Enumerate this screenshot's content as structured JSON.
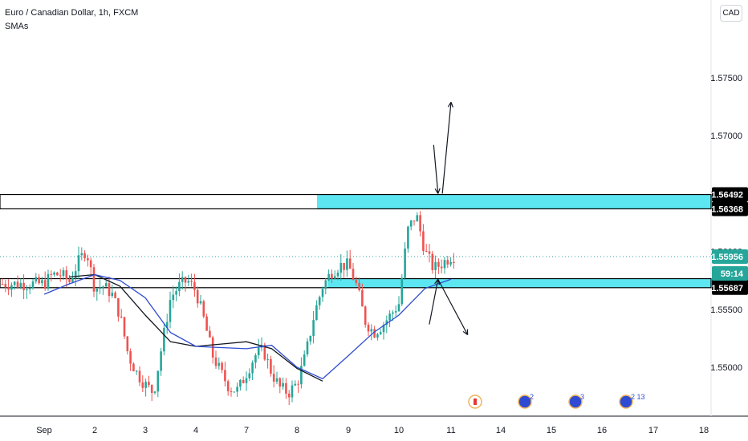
{
  "header": {
    "title": "Euro / Canadian Dollar, 1h, FXCM",
    "indicator": "SMAs",
    "currency": "CAD"
  },
  "colors": {
    "up_candle": "#26a69a",
    "down_candle": "#ef5350",
    "zone_fill": "#5ce6f2",
    "sma_fast": "#131722",
    "sma_slow": "#2f4bd1",
    "price_label_bg": "#26a69a",
    "level_label_bg": "#000000"
  },
  "chart_data": {
    "type": "line",
    "title": "Euro / Canadian Dollar, 1h, FXCM",
    "xlabel": "",
    "ylabel": "",
    "x_ticks": [
      "Sep",
      "2",
      "3",
      "4",
      "7",
      "8",
      "9",
      "10",
      "11",
      "14",
      "15",
      "16",
      "17",
      "18"
    ],
    "y_ticks": [
      "1.55000",
      "1.55500",
      "1.56000",
      "1.56500",
      "1.57000",
      "1.57500"
    ],
    "ylim": [
      1.5481,
      1.5805
    ],
    "price_path": {
      "description": "hourly close (approx.) from Sep 1 to Sep 11",
      "x": [
        "Sep 1 00:00",
        "Sep 1 04:00",
        "Sep 1 08:00",
        "Sep 1 12:00",
        "Sep 1 16:00",
        "Sep 1 20:00",
        "Sep 2 00:00",
        "Sep 2 04:00",
        "Sep 2 08:00",
        "Sep 2 12:00",
        "Sep 2 16:00",
        "Sep 2 20:00",
        "Sep 3 00:00",
        "Sep 3 04:00",
        "Sep 3 08:00",
        "Sep 3 12:00",
        "Sep 3 16:00",
        "Sep 3 20:00",
        "Sep 4 00:00",
        "Sep 4 04:00",
        "Sep 4 08:00",
        "Sep 4 12:00",
        "Sep 4 16:00",
        "Sep 4 20:00",
        "Sep 7 00:00",
        "Sep 7 04:00",
        "Sep 7 08:00",
        "Sep 7 12:00",
        "Sep 7 16:00",
        "Sep 7 20:00",
        "Sep 8 00:00",
        "Sep 8 04:00",
        "Sep 8 08:00",
        "Sep 8 12:00",
        "Sep 8 16:00",
        "Sep 8 20:00",
        "Sep 9 00:00",
        "Sep 9 04:00",
        "Sep 9 08:00",
        "Sep 9 12:00",
        "Sep 9 16:00",
        "Sep 9 20:00",
        "Sep 10 00:00",
        "Sep 10 04:00",
        "Sep 10 08:00",
        "Sep 10 12:00",
        "Sep 10 16:00",
        "Sep 10 20:00",
        "Sep 11 00:00"
      ],
      "y": [
        1.5572,
        1.558,
        1.558,
        1.5574,
        1.559,
        1.5602,
        1.5568,
        1.557,
        1.5564,
        1.5545,
        1.551,
        1.5495,
        1.5485,
        1.5478,
        1.552,
        1.556,
        1.557,
        1.5575,
        1.5566,
        1.554,
        1.551,
        1.5495,
        1.5482,
        1.548,
        1.5495,
        1.551,
        1.5515,
        1.5495,
        1.5482,
        1.5478,
        1.5486,
        1.551,
        1.5545,
        1.557,
        1.5582,
        1.5588,
        1.5588,
        1.557,
        1.554,
        1.553,
        1.5536,
        1.5545,
        1.5555,
        1.5618,
        1.5632,
        1.56,
        1.5585,
        1.559,
        1.5596
      ]
    },
    "series": [
      {
        "name": "",
        "color": "#131722",
        "description": "SMA (short)",
        "x": [
          "Sep 1 12:00",
          "Sep 2 00:00",
          "Sep 2 12:00",
          "Sep 3 00:00",
          "Sep 3 12:00",
          "Sep 4 00:00",
          "Sep 4 12:00",
          "Sep 7 00:00",
          "Sep 7 12:00",
          "Sep 8 00:00",
          "Sep 8 12:00"
        ],
        "y": [
          1.5578,
          1.558,
          1.557,
          1.5545,
          1.5522,
          1.5518,
          1.552,
          1.5522,
          1.5516,
          1.5499,
          1.5488
        ]
      },
      {
        "name": "",
        "color": "#2f4bd1",
        "description": "SMA (long)",
        "x": [
          "Sep 1 00:00",
          "Sep 1 12:00",
          "Sep 2 00:00",
          "Sep 2 12:00",
          "Sep 3 00:00",
          "Sep 3 12:00",
          "Sep 4 00:00",
          "Sep 4 12:00",
          "Sep 7 00:00",
          "Sep 7 12:00",
          "Sep 8 00:00",
          "Sep 8 12:00",
          "Sep 9 00:00",
          "Sep 9 12:00",
          "Sep 10 00:00",
          "Sep 10 12:00",
          "Sep 11 00:00"
        ],
        "y": [
          1.5563,
          1.5572,
          1.558,
          1.5575,
          1.556,
          1.553,
          1.5518,
          1.5517,
          1.5516,
          1.5519,
          1.55,
          1.549,
          1.551,
          1.553,
          1.5545,
          1.5568,
          1.5576
        ]
      }
    ],
    "zones": [
      {
        "top": 1.56492,
        "bottom": 1.56368,
        "label_top": "1.56492",
        "label_bottom": "1.56368"
      },
      {
        "top": 1.55765,
        "bottom": 1.55687,
        "label_top": "1.55765",
        "label_bottom": "1.55687"
      }
    ],
    "current_price": {
      "value": 1.55956,
      "label": "1.55956",
      "countdown": "59:14"
    },
    "annotations": [
      {
        "type": "arrow",
        "direction": "up",
        "from": [
          "Sep 10 20:00",
          1.565
        ],
        "to": [
          "Sep 11 00:00",
          1.5729
        ]
      },
      {
        "type": "arrow",
        "direction": "down",
        "from": [
          "Sep 10 16:00",
          1.5692
        ],
        "to": [
          "Sep 10 18:00",
          1.565
        ]
      },
      {
        "type": "arrow",
        "direction": "up",
        "from": [
          "Sep 10 14:00",
          1.5537
        ],
        "to": [
          "Sep 10 18:00",
          1.5576
        ]
      },
      {
        "type": "arrow",
        "direction": "down",
        "from": [
          "Sep 10 18:00",
          1.5576
        ],
        "to": [
          "Sep 11 08:00",
          1.5528
        ]
      }
    ],
    "events": [
      {
        "x": "Sep 11",
        "icon": "canada-flag-icon",
        "count": ""
      },
      {
        "x": "Sep 14",
        "icon": "eu-flag-icon",
        "count": "2"
      },
      {
        "x": "Sep 15",
        "icon": "eu-flag-icon",
        "count": "3"
      },
      {
        "x": "Sep 16",
        "icon": "eu-flag-icon",
        "count": "2 13"
      }
    ],
    "grid": false,
    "legend": "none"
  }
}
